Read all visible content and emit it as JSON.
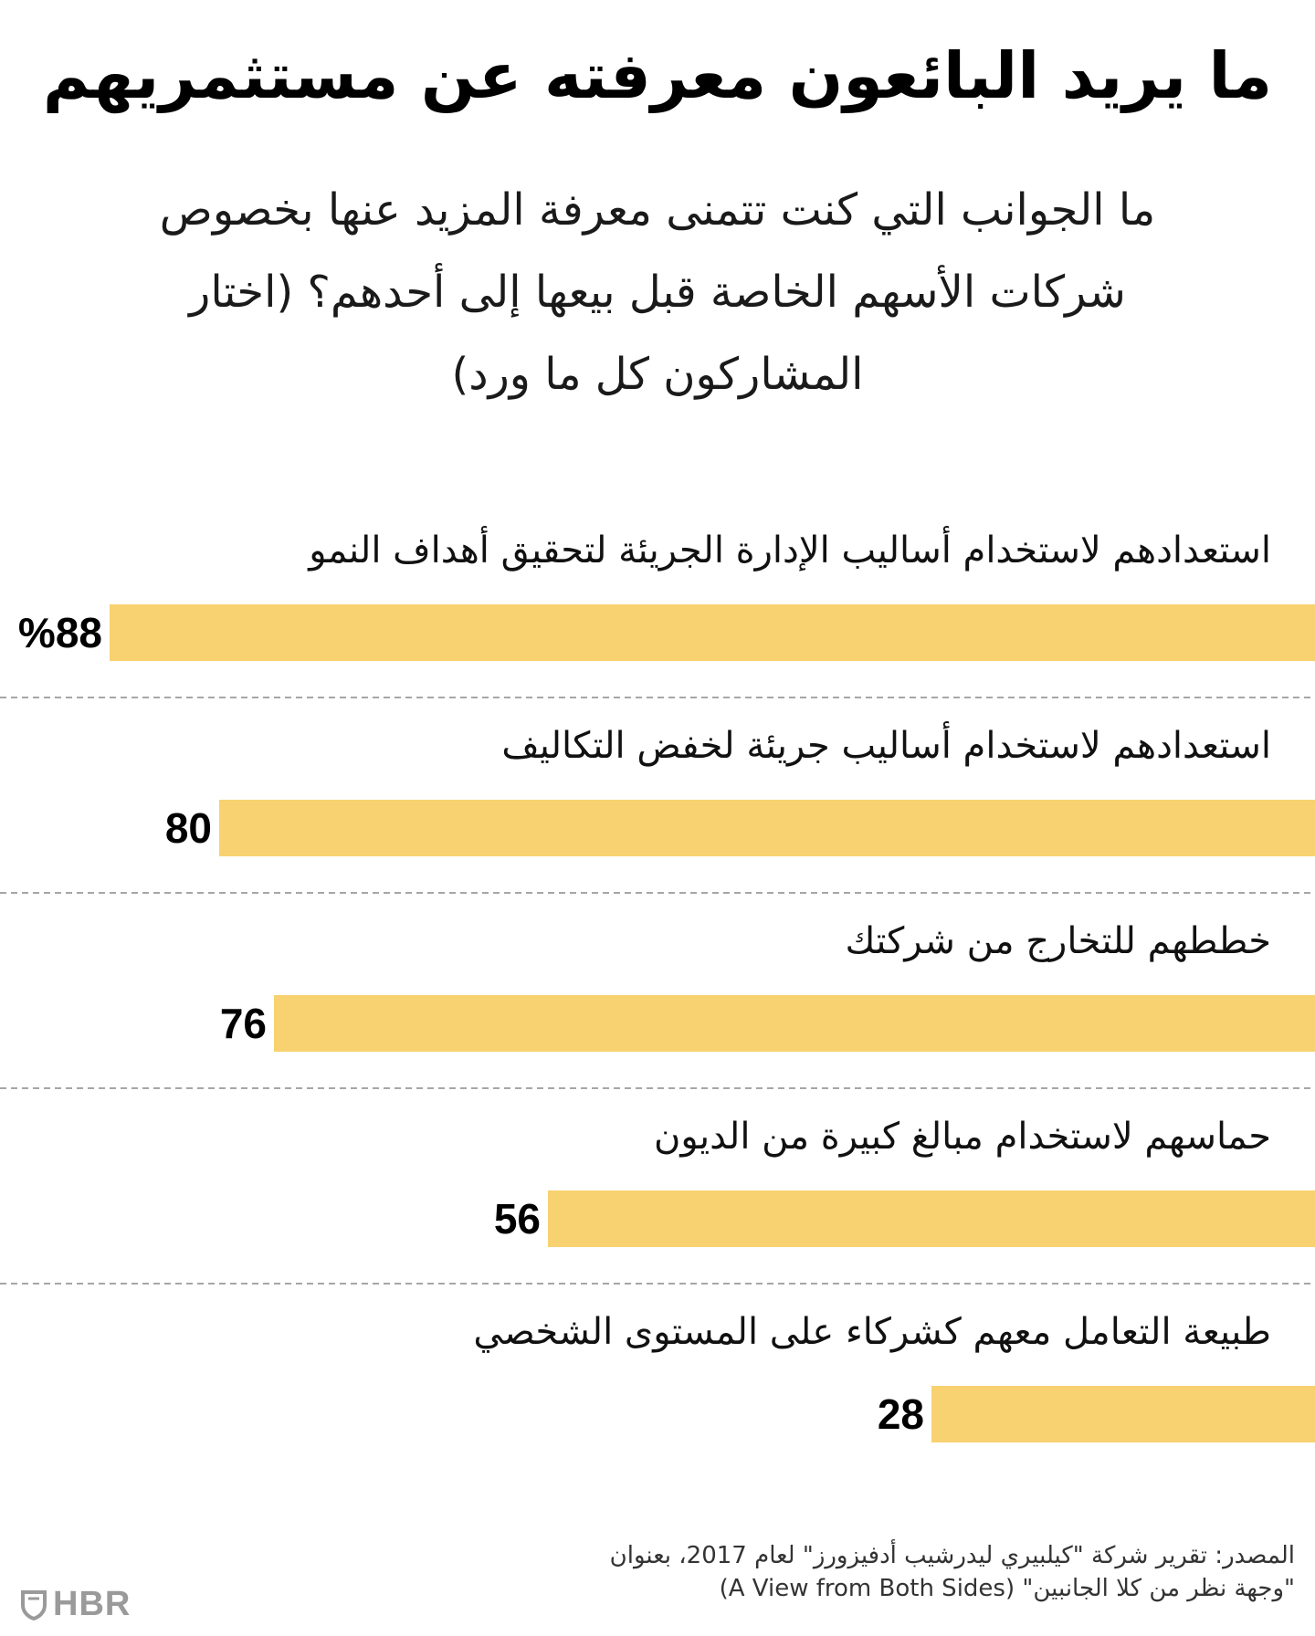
{
  "title": "ما يريد البائعون معرفته عن مستثمريهم",
  "subtitle": "ما الجوانب التي كنت تتمنى معرفة المزيد عنها بخصوص شركات الأسهم الخاصة قبل بيعها إلى أحدهم؟ (اختار المشاركون كل ما ورد)",
  "source": {
    "line1": "المصدر: تقرير شركة \"كيلبيري ليدرشيب أدفيزورز\" لعام 2017، بعنوان",
    "line2": "\"وجهة نظر من كلا الجانبين\" (A View from Both Sides)"
  },
  "logo": {
    "text": "HBR",
    "icon": "hbr-shield-icon"
  },
  "colors": {
    "bar": "#f8d170",
    "divider": "#888888",
    "text": "#111111"
  },
  "chart_data": {
    "type": "bar",
    "orientation": "horizontal",
    "categories": [
      "استعدادهم لاستخدام أساليب الإدارة الجريئة لتحقيق أهداف النمو",
      "استعدادهم لاستخدام أساليب جريئة لخفض التكاليف",
      "خططهم للتخارج من شركتك",
      "حماسهم لاستخدام مبالغ كبيرة من الديون",
      "طبيعة التعامل معهم كشركاء على المستوى الشخصي"
    ],
    "values": [
      88,
      80,
      76,
      56,
      28
    ],
    "value_labels": [
      "%88",
      "80",
      "76",
      "56",
      "28"
    ],
    "unit": "%",
    "xlim": [
      0,
      100
    ],
    "grid": false
  }
}
